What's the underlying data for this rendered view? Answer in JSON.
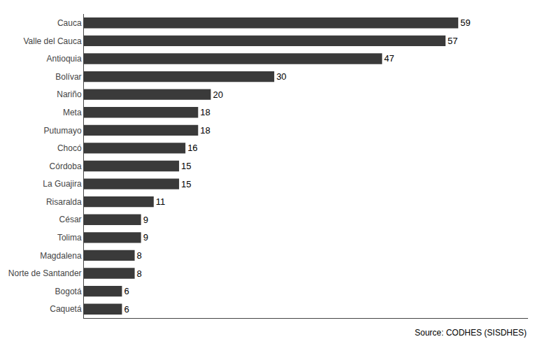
{
  "chart_data": {
    "type": "bar",
    "orientation": "horizontal",
    "categories": [
      "Cauca",
      "Valle del Cauca",
      "Antioquia",
      "Bolívar",
      "Nariño",
      "Meta",
      "Putumayo",
      "Chocó",
      "Córdoba",
      "La Guajira",
      "Risaralda",
      "César",
      "Tolima",
      "Magdalena",
      "Norte de Santander",
      "Bogotá",
      "Caquetá"
    ],
    "values": [
      59,
      57,
      47,
      30,
      20,
      18,
      18,
      16,
      15,
      15,
      11,
      9,
      9,
      8,
      8,
      6,
      6
    ],
    "color": "#3a3a3a",
    "xlim": [
      0,
      70
    ],
    "xticks": [],
    "data_labels": true,
    "tick_labels": "y",
    "grid": false,
    "annotations": [
      "Source: CODHES (SISDHES)"
    ]
  }
}
